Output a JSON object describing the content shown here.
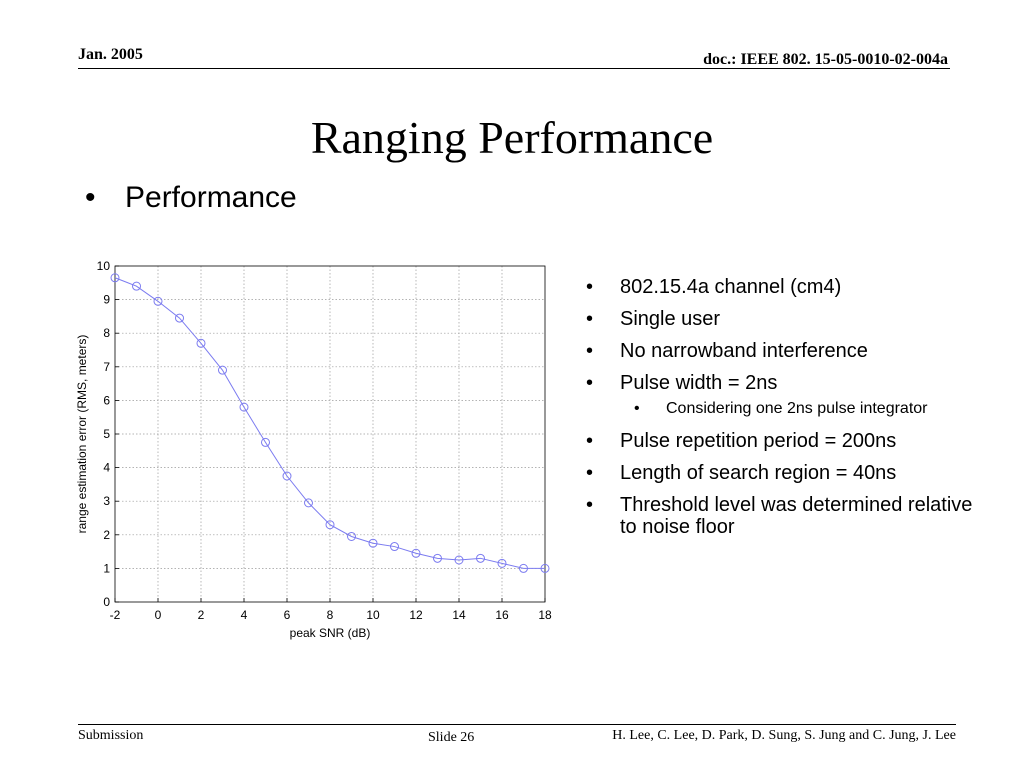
{
  "header": {
    "date": "Jan. 2005",
    "doc_id": "doc.: IEEE 802. 15-05-0010-02-004a"
  },
  "title": "Ranging Performance",
  "main_bullet": "Performance",
  "bullets": [
    {
      "text": "802.15.4a channel (cm4)",
      "level": 1
    },
    {
      "text": "Single user",
      "level": 1
    },
    {
      "text": "No narrowband interference",
      "level": 1
    },
    {
      "text": "Pulse width = 2ns",
      "level": 1
    },
    {
      "text": "Considering one 2ns pulse integrator",
      "level": 2
    },
    {
      "text": "Pulse repetition period = 200ns",
      "level": 1
    },
    {
      "text": "Length of search region = 40ns",
      "level": 1
    },
    {
      "text": "Threshold level was determined relative to noise floor",
      "level": 1
    }
  ],
  "footer": {
    "left": "Submission",
    "slide": "Slide 26",
    "authors": "H. Lee, C. Lee, D. Park, D. Sung, S. Jung and C. Jung, J. Lee"
  },
  "chart_data": {
    "type": "line",
    "title": "",
    "xlabel": "peak SNR (dB)",
    "ylabel": "range estimation error (RMS, meters)",
    "xlim": [
      -2,
      18
    ],
    "ylim": [
      0,
      10
    ],
    "xticks": [
      -2,
      0,
      2,
      4,
      6,
      8,
      10,
      12,
      14,
      16,
      18
    ],
    "yticks": [
      0,
      1,
      2,
      3,
      4,
      5,
      6,
      7,
      8,
      9,
      10
    ],
    "grid": true,
    "line_color": "#7b7bf0",
    "marker": "circle",
    "x": [
      -2,
      -1,
      0,
      1,
      2,
      3,
      4,
      5,
      6,
      7,
      8,
      9,
      10,
      11,
      12,
      13,
      14,
      15,
      16,
      17,
      18
    ],
    "series": [
      {
        "values": [
          9.65,
          9.4,
          8.95,
          8.45,
          7.7,
          6.9,
          5.8,
          4.75,
          3.75,
          2.95,
          2.3,
          1.95,
          1.75,
          1.65,
          1.45,
          1.3,
          1.25,
          1.3,
          1.15,
          1.0,
          1.0
        ]
      }
    ]
  }
}
